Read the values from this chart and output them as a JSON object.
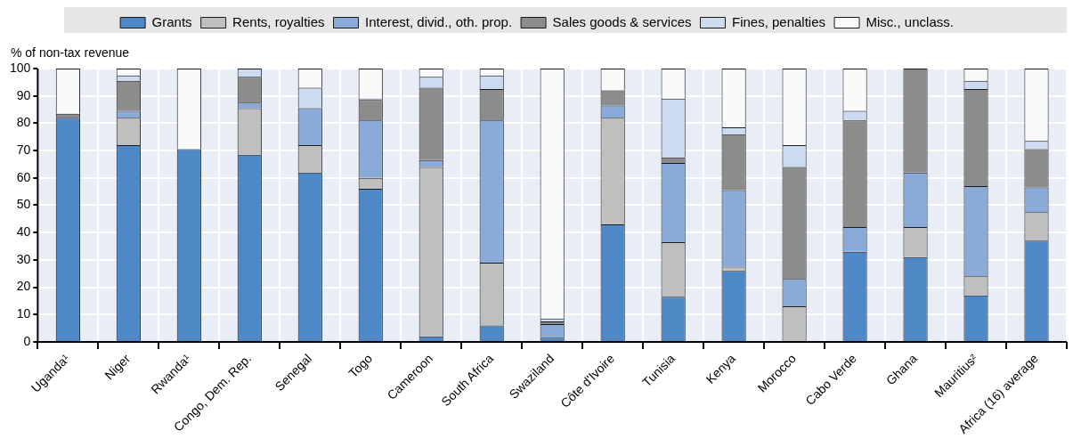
{
  "chart_data": {
    "type": "bar",
    "stacked": true,
    "ylabel": "% of non-tax revenue",
    "categories": [
      "Uganda¹",
      "Niger",
      "Rwanda¹",
      "Congo, Dem. Rep.",
      "Senegal",
      "Togo",
      "Cameroon",
      "South Africa",
      "Swaziland",
      "Côte d'Ivoire",
      "Tunisia",
      "Kenya",
      "Morocco",
      "Cabo Verde",
      "Ghana",
      "Mauritius²",
      "Africa (16) average"
    ],
    "series": [
      {
        "name": "Grants",
        "color": "#4e88c7",
        "values": [
          82,
          72,
          70.5,
          68.5,
          62,
          56,
          2,
          6,
          1.5,
          43,
          16.5,
          26,
          0,
          33,
          31,
          17,
          37
        ]
      },
      {
        "name": "Rents, royalties",
        "color": "#bfbfbf",
        "values": [
          0,
          10,
          0,
          17,
          10,
          4,
          62,
          23,
          0,
          39,
          20,
          1.5,
          13,
          0,
          11,
          7,
          10.5
        ]
      },
      {
        "name": "Interest, divid., oth. prop.",
        "color": "#8aaad8",
        "values": [
          0,
          2.5,
          0,
          2,
          13.5,
          21,
          2.5,
          52,
          5,
          4.5,
          29,
          28,
          10,
          9,
          20,
          33,
          9
        ]
      },
      {
        "name": "Sales goods & services",
        "color": "#8c8c8c",
        "values": [
          1.5,
          11,
          0,
          9.5,
          0,
          7.5,
          26.5,
          11.5,
          1,
          5.5,
          2,
          20.5,
          41,
          39,
          38,
          35.5,
          14
        ]
      },
      {
        "name": "Fines, penalties",
        "color": "#cddbf0",
        "values": [
          0,
          2,
          0,
          3,
          7.5,
          0.5,
          4,
          5,
          1,
          0,
          21.5,
          2.5,
          8,
          3.5,
          0,
          3,
          3
        ]
      },
      {
        "name": "Misc., unclass.",
        "color": "#fafafa",
        "values": [
          16.5,
          2.5,
          29.5,
          0,
          7,
          11,
          3,
          2.5,
          91.5,
          8,
          11,
          21.5,
          28,
          15.5,
          0,
          4.5,
          26.5
        ]
      }
    ],
    "ylim": [
      0,
      100
    ],
    "yticks": [
      0,
      10,
      20,
      30,
      40,
      50,
      60,
      70,
      80,
      90,
      100
    ],
    "grid": true,
    "legend": "top"
  }
}
